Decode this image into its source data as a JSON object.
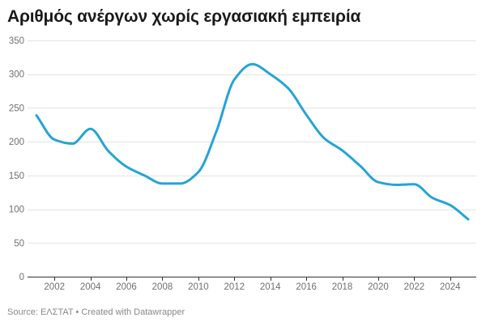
{
  "title": "Αριθμός ανέργων χωρίς εργασιακή εμπειρία",
  "footer": {
    "source": "Source: ΕΛΣΤΑΤ",
    "separator": " • ",
    "credit": "Created with Datawrapper"
  },
  "colors": {
    "line": "#25a4d6",
    "grid": "#e3e3e3",
    "baseline": "#333333",
    "tick_text": "#707070",
    "title": "#1a1a1a",
    "footer": "#888888"
  },
  "chart_data": {
    "type": "line",
    "xlabel": "",
    "ylabel": "",
    "xlim": [
      2001,
      2025
    ],
    "ylim": [
      0,
      350
    ],
    "x_ticks": [
      2002,
      2004,
      2006,
      2008,
      2010,
      2012,
      2014,
      2016,
      2018,
      2020,
      2022,
      2024
    ],
    "y_ticks": [
      0,
      50,
      100,
      150,
      200,
      250,
      300,
      350
    ],
    "grid": true,
    "legend": "none",
    "series": [
      {
        "x": [
          2001,
          2002,
          2003,
          2004,
          2005,
          2006,
          2007,
          2008,
          2009,
          2010,
          2011,
          2012,
          2013,
          2014,
          2015,
          2016,
          2017,
          2018,
          2019,
          2020,
          2021,
          2022,
          2023,
          2024,
          2025
        ],
        "values": [
          239,
          203,
          197,
          219,
          186,
          163,
          150,
          138,
          138,
          155,
          215,
          292,
          315,
          300,
          279,
          240,
          205,
          187,
          164,
          140,
          136,
          137,
          117,
          106,
          85
        ]
      }
    ]
  }
}
